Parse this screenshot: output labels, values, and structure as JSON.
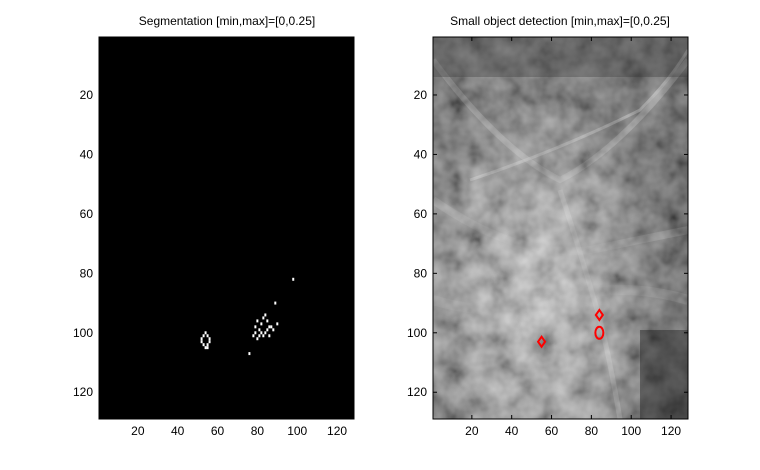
{
  "window": {
    "background": "#ffffff"
  },
  "chart_data": [
    {
      "type": "heatmap",
      "title": "Segmentation [min,max]=[0,0.25]",
      "colormap": "gray",
      "background_color": "#000000",
      "xlim": [
        0.5,
        128.5
      ],
      "ylim": [
        129,
        0.5
      ],
      "xticks": [
        20,
        40,
        60,
        80,
        100,
        120
      ],
      "yticks": [
        20,
        40,
        60,
        80,
        100,
        120
      ],
      "grid": false,
      "segmented_pixels": [
        [
          52,
          102
        ],
        [
          53,
          101
        ],
        [
          54,
          100
        ],
        [
          55,
          101
        ],
        [
          56,
          103
        ],
        [
          55,
          104
        ],
        [
          54,
          105
        ],
        [
          53,
          104
        ],
        [
          52,
          103
        ],
        [
          56,
          102
        ],
        [
          55,
          105
        ],
        [
          78,
          101
        ],
        [
          79,
          98
        ],
        [
          80,
          96
        ],
        [
          81,
          99
        ],
        [
          82,
          97
        ],
        [
          83,
          95
        ],
        [
          84,
          94
        ],
        [
          85,
          96
        ],
        [
          86,
          98
        ],
        [
          84,
          100
        ],
        [
          83,
          101
        ],
        [
          82,
          100
        ],
        [
          81,
          101
        ],
        [
          80,
          102
        ],
        [
          79,
          100
        ],
        [
          85,
          99
        ],
        [
          86,
          101
        ],
        [
          88,
          99
        ],
        [
          87,
          98
        ],
        [
          90,
          97
        ],
        [
          89,
          90
        ],
        [
          76,
          107
        ],
        [
          98,
          82
        ]
      ]
    },
    {
      "type": "heatmap",
      "title": "Small object detection [min,max]=[0,0.25]",
      "colormap": "gray",
      "xlim": [
        0.5,
        128.5
      ],
      "ylim": [
        129,
        0.5
      ],
      "xticks": [
        20,
        40,
        60,
        80,
        100,
        120
      ],
      "yticks": [
        20,
        40,
        60,
        80,
        100,
        120
      ],
      "grid": false,
      "detection_color": "#ff0000",
      "detections": [
        {
          "x": 55,
          "y": 103,
          "shape": "diamond"
        },
        {
          "x": 84,
          "y": 94,
          "shape": "diamond"
        },
        {
          "x": 84,
          "y": 100,
          "shape": "ring"
        }
      ]
    }
  ]
}
